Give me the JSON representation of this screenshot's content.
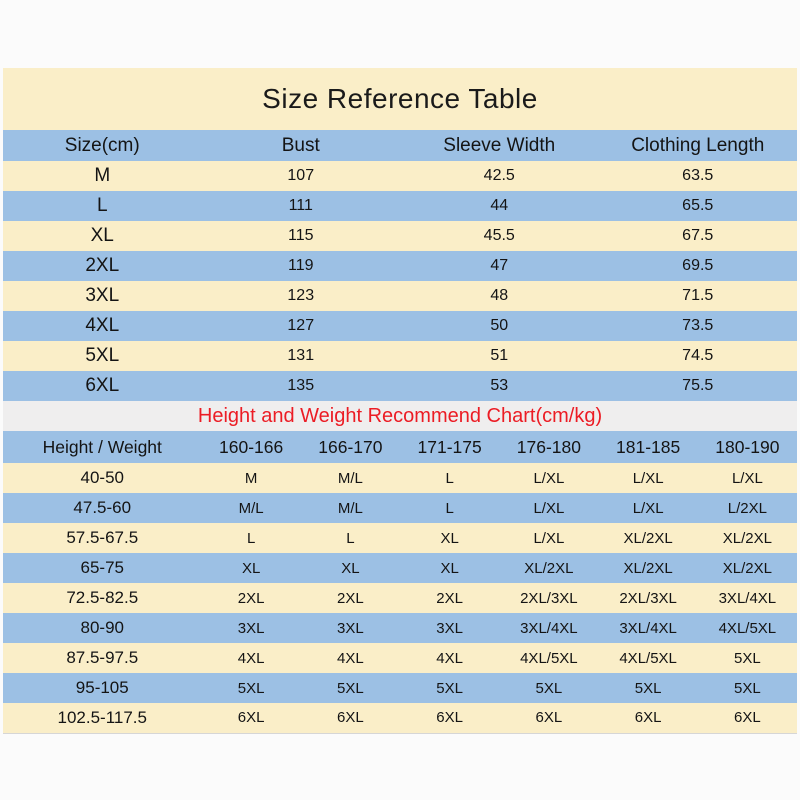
{
  "colors": {
    "page_background": "#fbfbfb",
    "row_cream": "#faeec8",
    "row_blue": "#9cc0e4",
    "subtitle_band_gray": "#efeeee",
    "subtitle_red": "#ec1c24",
    "text": "#141414"
  },
  "size_table": {
    "title": "Size Reference Table",
    "headers": [
      "Size(cm)",
      "Bust",
      "Sleeve Width",
      "Clothing Length"
    ],
    "rows": [
      [
        "M",
        "107",
        "42.5",
        "63.5"
      ],
      [
        "L",
        "111",
        "44",
        "65.5"
      ],
      [
        "XL",
        "115",
        "45.5",
        "67.5"
      ],
      [
        "2XL",
        "119",
        "47",
        "69.5"
      ],
      [
        "3XL",
        "123",
        "48",
        "71.5"
      ],
      [
        "4XL",
        "127",
        "50",
        "73.5"
      ],
      [
        "5XL",
        "131",
        "51",
        "74.5"
      ],
      [
        "6XL",
        "135",
        "53",
        "75.5"
      ]
    ]
  },
  "recommend_chart": {
    "title": "Height and Weight Recommend Chart(cm/kg)",
    "headers": [
      "Height / Weight",
      "160-166",
      "166-170",
      "171-175",
      "176-180",
      "181-185",
      "180-190"
    ],
    "rows": [
      [
        "40-50",
        "M",
        "M/L",
        "L",
        "L/XL",
        "L/XL",
        "L/XL"
      ],
      [
        "47.5-60",
        "M/L",
        "M/L",
        "L",
        "L/XL",
        "L/XL",
        "L/2XL"
      ],
      [
        "57.5-67.5",
        "L",
        "L",
        "XL",
        "L/XL",
        "XL/2XL",
        "XL/2XL"
      ],
      [
        "65-75",
        "XL",
        "XL",
        "XL",
        "XL/2XL",
        "XL/2XL",
        "XL/2XL"
      ],
      [
        "72.5-82.5",
        "2XL",
        "2XL",
        "2XL",
        "2XL/3XL",
        "2XL/3XL",
        "3XL/4XL"
      ],
      [
        "80-90",
        "3XL",
        "3XL",
        "3XL",
        "3XL/4XL",
        "3XL/4XL",
        "4XL/5XL"
      ],
      [
        "87.5-97.5",
        "4XL",
        "4XL",
        "4XL",
        "4XL/5XL",
        "4XL/5XL",
        "5XL"
      ],
      [
        "95-105",
        "5XL",
        "5XL",
        "5XL",
        "5XL",
        "5XL",
        "5XL"
      ],
      [
        "102.5-117.5",
        "6XL",
        "6XL",
        "6XL",
        "6XL",
        "6XL",
        "6XL"
      ]
    ]
  },
  "chart_data": [
    {
      "type": "table",
      "title": "Size Reference Table",
      "columns": [
        "Size(cm)",
        "Bust",
        "Sleeve Width",
        "Clothing Length"
      ],
      "rows": [
        [
          "M",
          107,
          42.5,
          63.5
        ],
        [
          "L",
          111,
          44,
          65.5
        ],
        [
          "XL",
          115,
          45.5,
          67.5
        ],
        [
          "2XL",
          119,
          47,
          69.5
        ],
        [
          "3XL",
          123,
          48,
          71.5
        ],
        [
          "4XL",
          127,
          50,
          73.5
        ],
        [
          "5XL",
          131,
          51,
          74.5
        ],
        [
          "6XL",
          135,
          53,
          75.5
        ]
      ]
    },
    {
      "type": "table",
      "title": "Height and Weight Recommend Chart(cm/kg)",
      "columns": [
        "Height / Weight",
        "160-166",
        "166-170",
        "171-175",
        "176-180",
        "181-185",
        "180-190"
      ],
      "rows": [
        [
          "40-50",
          "M",
          "M/L",
          "L",
          "L/XL",
          "L/XL",
          "L/XL"
        ],
        [
          "47.5-60",
          "M/L",
          "M/L",
          "L",
          "L/XL",
          "L/XL",
          "L/2XL"
        ],
        [
          "57.5-67.5",
          "L",
          "L",
          "XL",
          "L/XL",
          "XL/2XL",
          "XL/2XL"
        ],
        [
          "65-75",
          "XL",
          "XL",
          "XL",
          "XL/2XL",
          "XL/2XL",
          "XL/2XL"
        ],
        [
          "72.5-82.5",
          "2XL",
          "2XL",
          "2XL",
          "2XL/3XL",
          "2XL/3XL",
          "3XL/4XL"
        ],
        [
          "80-90",
          "3XL",
          "3XL",
          "3XL",
          "3XL/4XL",
          "3XL/4XL",
          "4XL/5XL"
        ],
        [
          "87.5-97.5",
          "4XL",
          "4XL",
          "4XL",
          "4XL/5XL",
          "4XL/5XL",
          "5XL"
        ],
        [
          "95-105",
          "5XL",
          "5XL",
          "5XL",
          "5XL",
          "5XL",
          "5XL"
        ],
        [
          "102.5-117.5",
          "6XL",
          "6XL",
          "6XL",
          "6XL",
          "6XL",
          "6XL"
        ]
      ]
    }
  ]
}
